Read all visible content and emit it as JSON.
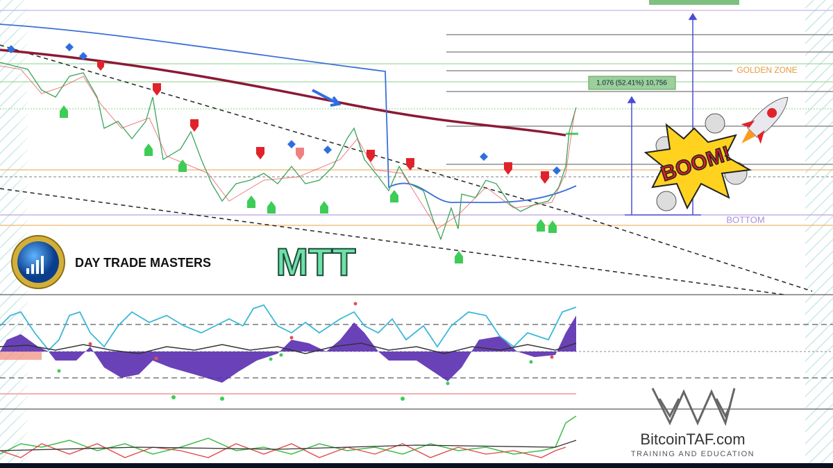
{
  "annotations": {
    "measure_label": "1.076 (52.41%) 10,756",
    "golden_zone": "GOLDEN ZONE",
    "bottom": "BOTTOM",
    "boom": "BOOM!"
  },
  "branding": {
    "name": "DAY TRADE MASTERS",
    "indicator": "MTT",
    "site": "BitcoinTAF.com",
    "tagline": "TRAINING AND EDUCATION"
  }
}
